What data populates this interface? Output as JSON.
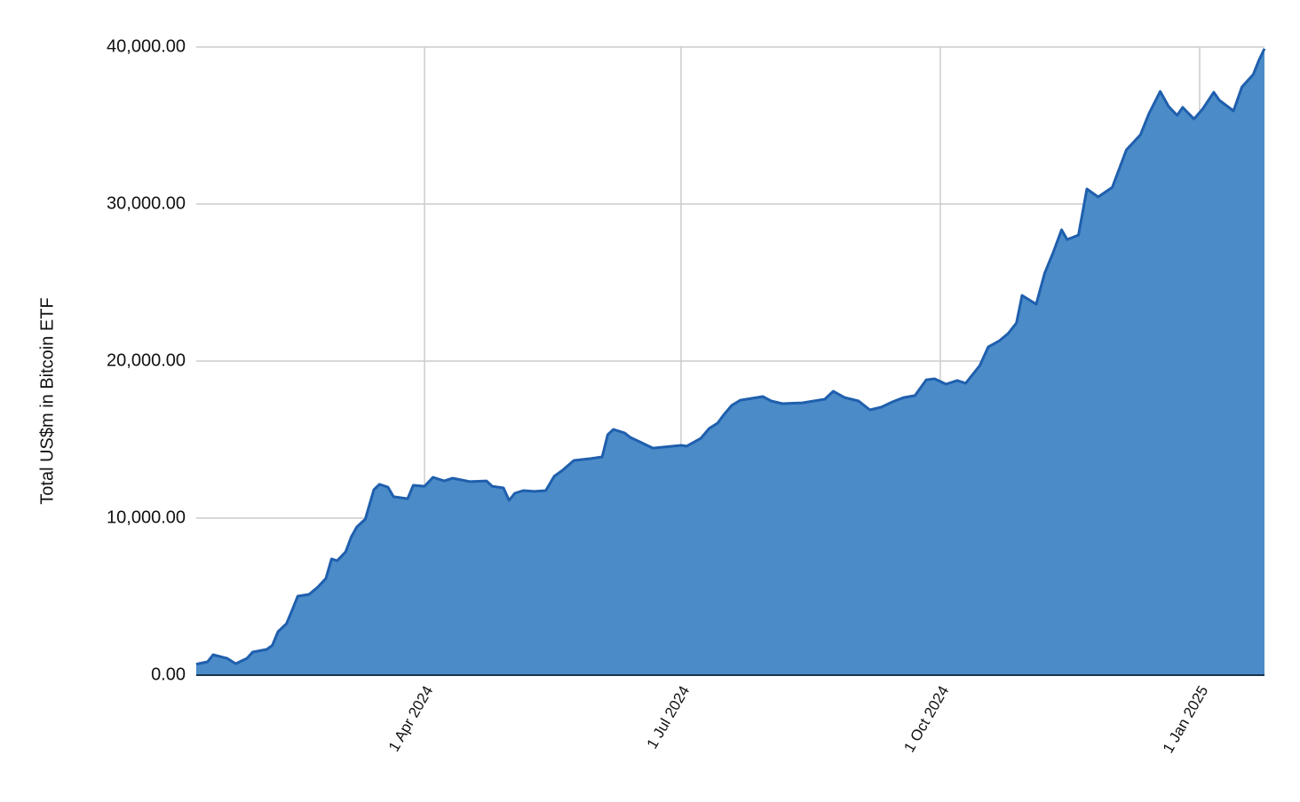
{
  "chart_data": {
    "type": "area",
    "y_axis_label": "Total US$m in Bitcoin ETF",
    "x": [
      "2024-01-11",
      "2024-01-15",
      "2024-01-17",
      "2024-01-22",
      "2024-01-25",
      "2024-01-29",
      "2024-01-31",
      "2024-02-05",
      "2024-02-07",
      "2024-02-09",
      "2024-02-12",
      "2024-02-14",
      "2024-02-16",
      "2024-02-20",
      "2024-02-23",
      "2024-02-26",
      "2024-02-28",
      "2024-03-01",
      "2024-03-04",
      "2024-03-06",
      "2024-03-08",
      "2024-03-11",
      "2024-03-14",
      "2024-03-16",
      "2024-03-19",
      "2024-03-21",
      "2024-03-26",
      "2024-03-28",
      "2024-04-01",
      "2024-04-04",
      "2024-04-08",
      "2024-04-11",
      "2024-04-17",
      "2024-04-23",
      "2024-04-25",
      "2024-04-29",
      "2024-05-01",
      "2024-05-03",
      "2024-05-06",
      "2024-05-10",
      "2024-05-14",
      "2024-05-17",
      "2024-05-20",
      "2024-05-24",
      "2024-05-30",
      "2024-06-03",
      "2024-06-05",
      "2024-06-07",
      "2024-06-11",
      "2024-06-13",
      "2024-06-17",
      "2024-06-21",
      "2024-07-01",
      "2024-07-03",
      "2024-07-08",
      "2024-07-11",
      "2024-07-14",
      "2024-07-16",
      "2024-07-19",
      "2024-07-22",
      "2024-07-30",
      "2024-08-02",
      "2024-08-06",
      "2024-08-13",
      "2024-08-21",
      "2024-08-24",
      "2024-08-28",
      "2024-09-02",
      "2024-09-06",
      "2024-09-10",
      "2024-09-14",
      "2024-09-18",
      "2024-09-22",
      "2024-09-26",
      "2024-09-29",
      "2024-10-03",
      "2024-10-07",
      "2024-10-10",
      "2024-10-15",
      "2024-10-18",
      "2024-10-22",
      "2024-10-25",
      "2024-10-28",
      "2024-10-30",
      "2024-11-04",
      "2024-11-07",
      "2024-11-10",
      "2024-11-13",
      "2024-11-15",
      "2024-11-19",
      "2024-11-22",
      "2024-11-26",
      "2024-12-01",
      "2024-12-06",
      "2024-12-11",
      "2024-12-14",
      "2024-12-18",
      "2024-12-21",
      "2024-12-24",
      "2024-12-26",
      "2024-12-30",
      "2025-01-02",
      "2025-01-06",
      "2025-01-08",
      "2025-01-13",
      "2025-01-16",
      "2025-01-20",
      "2025-01-22",
      "2025-01-24"
    ],
    "series": [
      {
        "name": "Total US$m in Bitcoin ETF",
        "color": "#4a8bc8",
        "line_color": "#1f5fad",
        "values": [
          700,
          850,
          1300,
          1070,
          730,
          1070,
          1470,
          1640,
          1900,
          2770,
          3280,
          4120,
          5030,
          5140,
          5590,
          6160,
          7400,
          7290,
          7850,
          8810,
          9440,
          9940,
          11810,
          12150,
          11980,
          11360,
          11240,
          12090,
          12030,
          12600,
          12370,
          12540,
          12320,
          12370,
          12030,
          11920,
          11130,
          11580,
          11750,
          11700,
          11750,
          12660,
          13050,
          13670,
          13790,
          13900,
          15310,
          15650,
          15420,
          15140,
          14800,
          14460,
          14630,
          14580,
          15080,
          15710,
          16050,
          16550,
          17180,
          17510,
          17740,
          17460,
          17290,
          17340,
          17570,
          18080,
          17680,
          17460,
          16890,
          17060,
          17400,
          17680,
          17800,
          18810,
          18870,
          18530,
          18760,
          18590,
          19720,
          20900,
          21300,
          21750,
          22430,
          24180,
          23620,
          25590,
          26890,
          28360,
          27740,
          28020,
          30960,
          30450,
          31070,
          33450,
          34410,
          35760,
          37170,
          36210,
          35650,
          36160,
          35420,
          36040,
          37120,
          36610,
          35930,
          37460,
          38250,
          39150,
          39890
        ]
      }
    ],
    "xlim": [
      "2024-01-11",
      "2025-01-24"
    ],
    "xticks": [
      {
        "value": "2024-04-01",
        "label": "1 Apr 2024"
      },
      {
        "value": "2024-07-01",
        "label": "1 Jul 2024"
      },
      {
        "value": "2024-10-01",
        "label": "1 Oct 2024"
      },
      {
        "value": "2025-01-01",
        "label": "1 Jan 2025"
      }
    ],
    "ylim": [
      0,
      40000
    ],
    "yticks": [
      {
        "value": 0,
        "label": "0.00"
      },
      {
        "value": 10000,
        "label": "10,000.00"
      },
      {
        "value": 20000,
        "label": "20,000.00"
      },
      {
        "value": 30000,
        "label": "30,000.00"
      },
      {
        "value": 40000,
        "label": "40,000.00"
      }
    ],
    "grid": true
  }
}
